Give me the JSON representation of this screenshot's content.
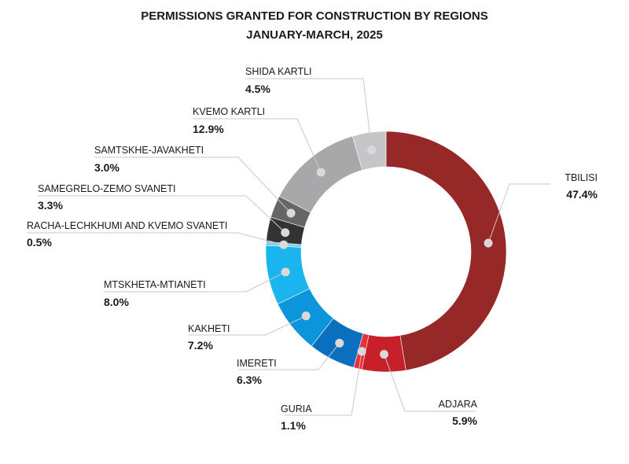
{
  "chart_data": {
    "type": "pie",
    "variant": "donut",
    "title": "PERMISSIONS GRANTED FOR CONSTRUCTION BY REGIONS",
    "subtitle": "JANUARY-MARCH, 2025",
    "slices": [
      {
        "name": "TBILISI",
        "label": "47.4%",
        "value": 47.4,
        "color": "#962828"
      },
      {
        "name": "ADJARA",
        "label": "5.9%",
        "value": 5.9,
        "color": "#c8202a"
      },
      {
        "name": "GURIA",
        "label": "1.1%",
        "value": 1.1,
        "color": "#e8303a"
      },
      {
        "name": "IMERETI",
        "label": "6.3%",
        "value": 6.3,
        "color": "#0b6fc0"
      },
      {
        "name": "KAKHETI",
        "label": "7.2%",
        "value": 7.2,
        "color": "#0d95dc"
      },
      {
        "name": "MTSKHETA-MTIANETI",
        "label": "8.0%",
        "value": 8.0,
        "color": "#1ab4ee"
      },
      {
        "name": "RACHA-LECHKHUMI AND KVEMO SVANETI",
        "label": "0.5%",
        "value": 0.5,
        "color": "#7fcdee"
      },
      {
        "name": "SAMEGRELO-ZEMO SVANETI",
        "label": "3.3%",
        "value": 3.3,
        "color": "#333333"
      },
      {
        "name": "SAMTSKHE-JAVAKHETI",
        "label": "3.0%",
        "value": 3.0,
        "color": "#666666"
      },
      {
        "name": "KVEMO KARTLI",
        "label": "12.9%",
        "value": 12.9,
        "color": "#a8a8aa"
      },
      {
        "name": "SHIDA KARTLI",
        "label": "4.5%",
        "value": 4.5,
        "color": "#c6c6c8"
      }
    ]
  }
}
